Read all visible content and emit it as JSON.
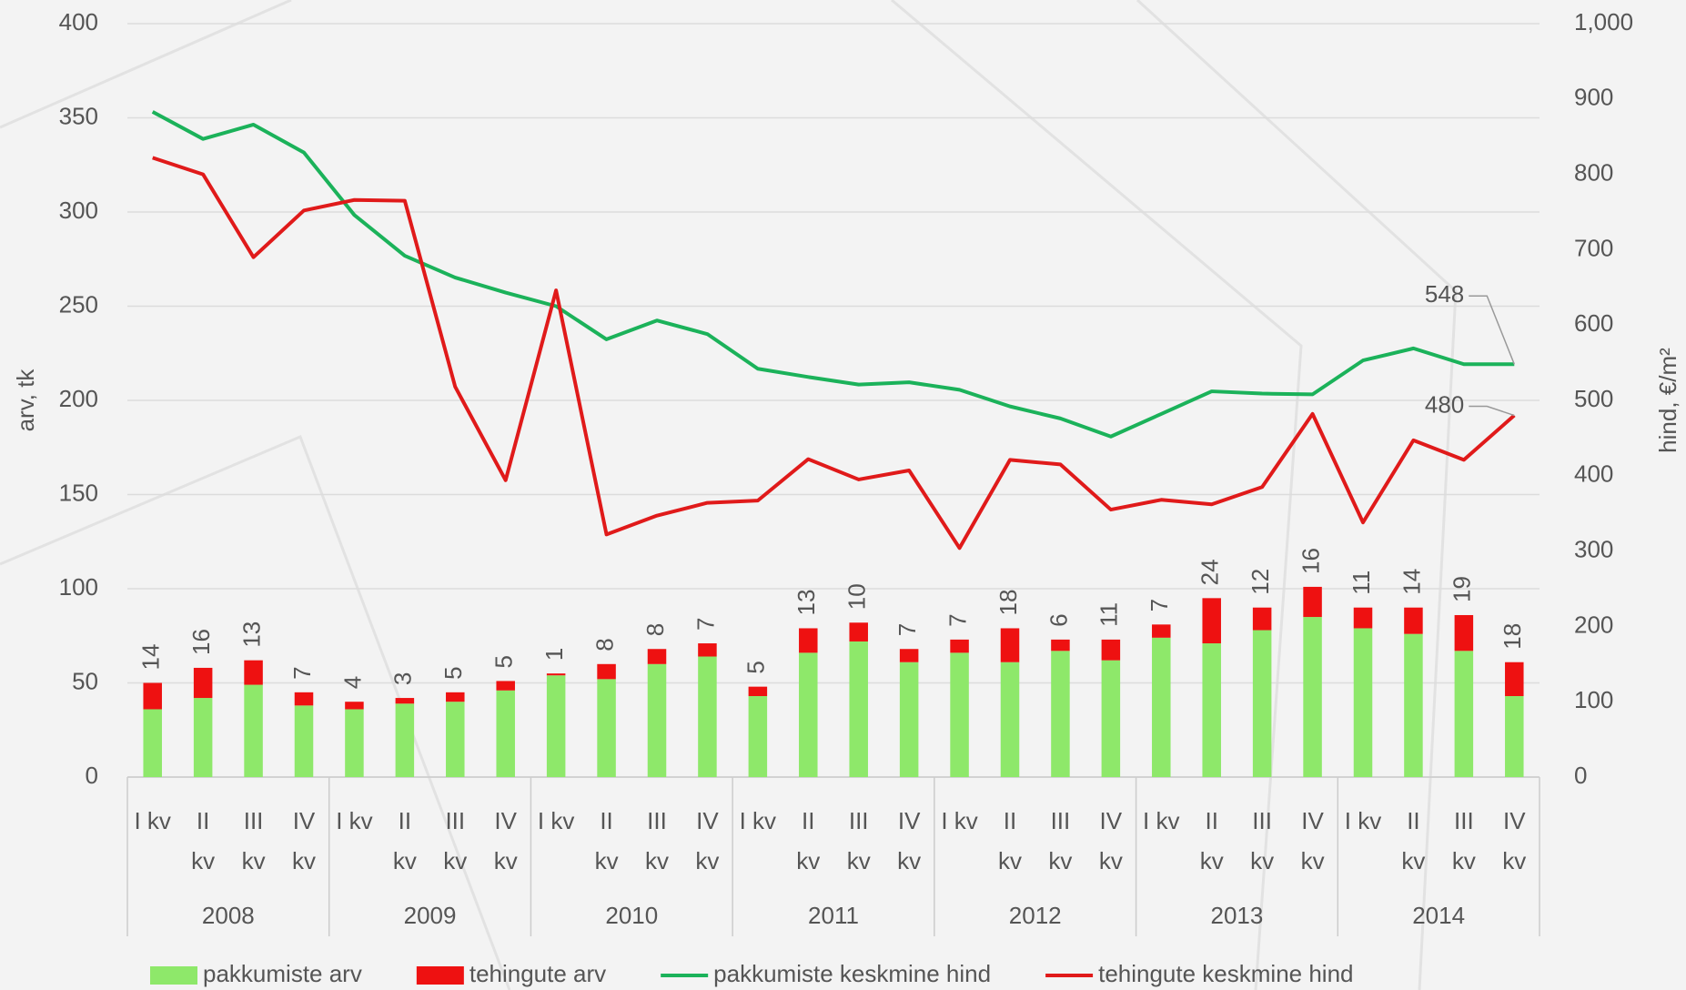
{
  "chart_data": {
    "type": "bar_line",
    "categories": [
      "I kv",
      "II\nkv",
      "III\nkv",
      "IV\nkv",
      "I kv",
      "II\nkv",
      "III\nkv",
      "IV\nkv",
      "I kv",
      "II\nkv",
      "III\nkv",
      "IV\nkv",
      "I kv",
      "II\nkv",
      "III\nkv",
      "IV\nkv",
      "I kv",
      "II\nkv",
      "III\nkv",
      "IV\nkv",
      "I kv",
      "II\nkv",
      "III\nkv",
      "IV\nkv",
      "I kv",
      "II\nkv",
      "III\nkv",
      "IV\nkv"
    ],
    "groups": [
      "2008",
      "2009",
      "2010",
      "2011",
      "2012",
      "2013",
      "2014"
    ],
    "ylabel": "arv, tk",
    "y2label": "hind, €/m²",
    "ylim": [
      0,
      400
    ],
    "yticks": [
      0,
      50,
      100,
      150,
      200,
      250,
      300,
      350,
      400
    ],
    "y2lim": [
      0,
      1000
    ],
    "y2ticks": [
      0,
      100,
      200,
      300,
      400,
      500,
      600,
      700,
      800,
      900,
      {
        "value": 1000,
        "label": "1,000"
      }
    ],
    "grid": true,
    "legend": "bottom",
    "series": [
      {
        "name": "pakkumiste arv",
        "type": "bar",
        "color": "#8ee86a",
        "values": [
          36,
          42,
          49,
          38,
          36,
          39,
          40,
          46,
          54,
          52,
          60,
          64,
          43,
          66,
          72,
          61,
          66,
          61,
          67,
          62,
          74,
          71,
          78,
          85,
          79,
          76,
          67,
          43
        ]
      },
      {
        "name": "tehingute arv",
        "type": "bar",
        "color": "#ee1111",
        "show_labels": true,
        "values": [
          14,
          16,
          13,
          7,
          4,
          3,
          5,
          5,
          1,
          8,
          8,
          7,
          5,
          13,
          10,
          7,
          7,
          18,
          6,
          11,
          7,
          24,
          12,
          16,
          11,
          14,
          19,
          18
        ]
      },
      {
        "name": "pakkumiste keskmine hind",
        "type": "line",
        "axis": "y2",
        "color": "#1bb25a",
        "values": [
          883,
          847,
          866,
          829,
          746,
          692,
          663,
          643,
          625,
          581,
          606,
          588,
          542,
          531,
          521,
          524,
          514,
          492,
          476,
          452,
          482,
          512,
          509,
          508,
          553,
          569,
          548,
          548
        ]
      },
      {
        "name": "tehingute keskmine hind",
        "type": "line",
        "axis": "y2",
        "color": "#e01a1a",
        "values": [
          822,
          800,
          690,
          752,
          766,
          765,
          518,
          394,
          646,
          322,
          347,
          364,
          367,
          422,
          395,
          407,
          304,
          421,
          415,
          355,
          368,
          362,
          385,
          482,
          338,
          447,
          421,
          480
        ]
      }
    ]
  }
}
